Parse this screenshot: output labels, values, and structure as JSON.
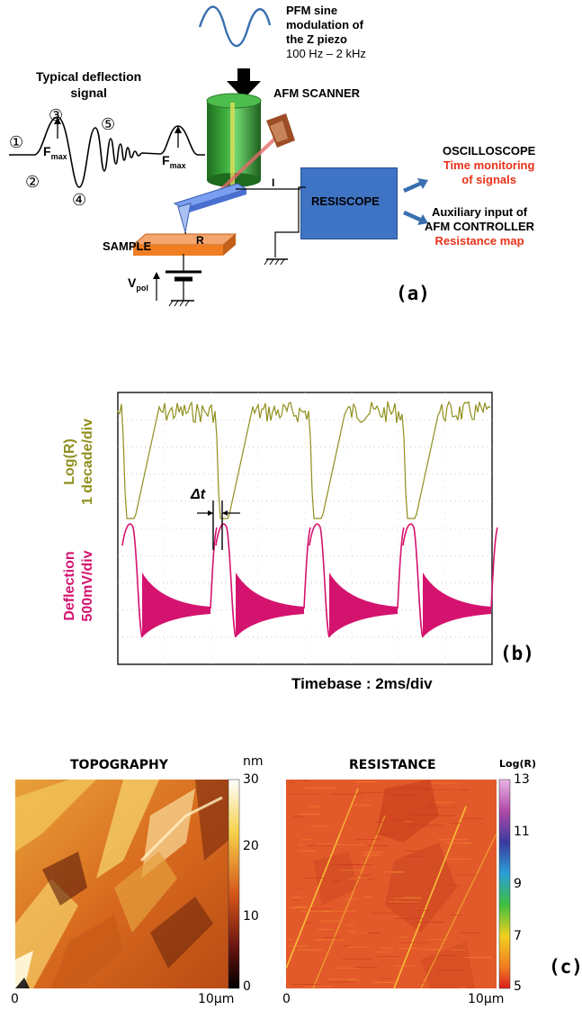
{
  "panel_a": {
    "pfm_title": [
      "PFM sine",
      "modulation of",
      "the Z piezo"
    ],
    "pfm_freq": "100 Hz – 2 kHz",
    "typical_title": [
      "Typical deflection",
      "signal"
    ],
    "markers": [
      "①",
      "②",
      "③",
      "④",
      "⑤"
    ],
    "fmax": "F",
    "fmax_sub": "max",
    "afm_scanner": "AFM SCANNER",
    "current": "I",
    "r_label": "R",
    "sample": "SAMPLE",
    "vpol": "V",
    "vpol_sub": "pol",
    "resiscope": "RESISCOPE",
    "oscilloscope": "OSCILLOSCOPE",
    "oscilloscope_sub": [
      "Time monitoring",
      "of signals"
    ],
    "aux": [
      "Auxiliary input of",
      "AFM CONTROLLER"
    ],
    "aux_sub": "Resistance map",
    "tag": "(a)"
  },
  "panel_b": {
    "ylabel_top": [
      "Log(R)",
      "1 decade/div"
    ],
    "ylabel_bottom": [
      "Deflection",
      "500mV/div"
    ],
    "delta_t": "Δt",
    "timebase": "Timebase : 2ms/div",
    "tag": "(b)",
    "colors": {
      "logr": "#8f8f1e",
      "deflection": "#d4136f"
    }
  },
  "panel_c": {
    "topo_title": "TOPOGRAPHY",
    "res_title": "RESISTANCE",
    "topo_unit": "nm",
    "res_unit": "Log(R)",
    "topo_ticks": [
      "30",
      "20",
      "10",
      "0"
    ],
    "res_ticks": [
      "13",
      "11",
      "9",
      "7",
      "5"
    ],
    "x_start": "0",
    "x_end": "10µm",
    "tag": "(c)"
  }
}
